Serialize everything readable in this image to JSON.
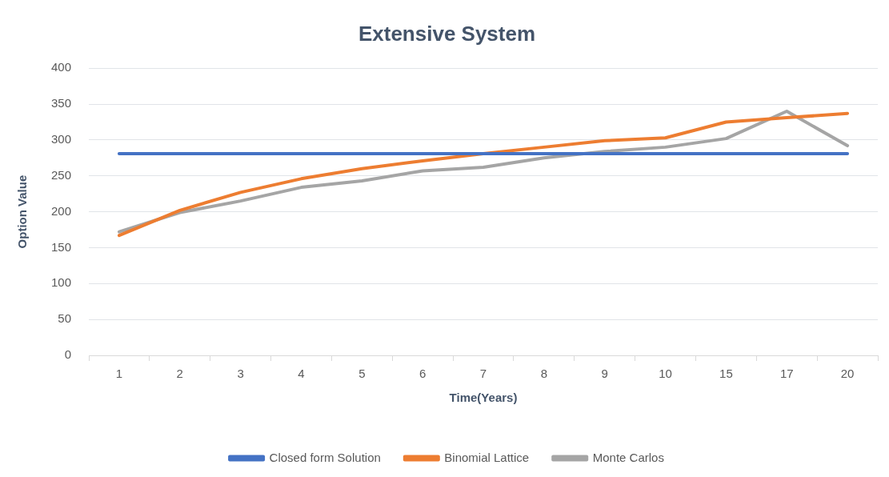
{
  "chart_data": {
    "type": "line",
    "title": "Extensive System",
    "xlabel": "Time(Years)",
    "ylabel": "Option Value",
    "categories": [
      "1",
      "2",
      "3",
      "4",
      "5",
      "6",
      "7",
      "8",
      "9",
      "10",
      "15",
      "17",
      "20"
    ],
    "series": [
      {
        "name": "Closed form Solution",
        "color": "#4472c4",
        "values": [
          281,
          281,
          281,
          281,
          281,
          281,
          281,
          281,
          281,
          281,
          281,
          281,
          281
        ]
      },
      {
        "name": "Binomial Lattice",
        "color": "#ed7d31",
        "values": [
          167,
          202,
          227,
          246,
          260,
          271,
          281,
          290,
          299,
          303,
          325,
          331,
          337
        ]
      },
      {
        "name": "Monte Carlos",
        "color": "#a5a5a5",
        "values": [
          172,
          199,
          215,
          234,
          243,
          257,
          262,
          275,
          284,
          290,
          302,
          340,
          292
        ]
      }
    ],
    "ylim": [
      0,
      400
    ],
    "yticks": [
      0,
      50,
      100,
      150,
      200,
      250,
      300,
      350,
      400
    ],
    "grid": "y",
    "legend": "bottom",
    "marker": "none",
    "line_style": "solid"
  }
}
